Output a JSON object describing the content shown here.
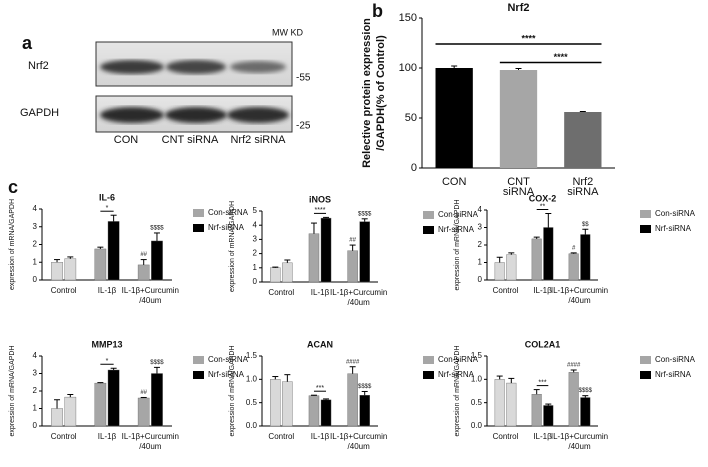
{
  "panels": {
    "a": {
      "label": "a",
      "proteins": [
        "Nrf2",
        "GAPDH"
      ],
      "mw_header": "MW KD",
      "mw": [
        "-55",
        "-25"
      ],
      "lanes": [
        "CON",
        "CNT siRNA",
        "Nrf2 siRNA"
      ]
    },
    "b_label": "b",
    "c_label": "c"
  },
  "chart_data": [
    {
      "type": "bar",
      "title": "Nrf2",
      "ylabel": [
        "Relective protein expression",
        "/GAPDH(% of Control)"
      ],
      "categories": [
        "CON",
        "CNT siRNA",
        "Nrf2 siRNA"
      ],
      "values": [
        100,
        98,
        56
      ],
      "errors": [
        2,
        1.5,
        0.5
      ],
      "colors": [
        "#000000",
        "#a6a6a6",
        "#6e6e6e"
      ],
      "ylim": [
        0,
        150
      ],
      "yticks": [
        0,
        50,
        100,
        150
      ],
      "annotations": [
        {
          "text": "****",
          "from": "CON",
          "to": "Nrf2 siRNA"
        },
        {
          "text": "****",
          "from": "CNT siRNA",
          "to": "Nrf2 siRNA"
        }
      ]
    },
    {
      "type": "bar",
      "title": "IL-6",
      "ylabel": "expression of mRNA/GAPDH",
      "categories": [
        "Control",
        "IL-1β",
        "IL-1β+Curcumin /40um"
      ],
      "series": [
        {
          "name": "Con-siRNA",
          "color": "#a6a6a6",
          "colors": [
            "#d9d9d9",
            "#a6a6a6",
            "#a6a6a6"
          ],
          "values": [
            1.0,
            1.75,
            0.85
          ],
          "errors": [
            0.15,
            0.1,
            0.3
          ]
        },
        {
          "name": "Nrf-siRNA",
          "color": "#000000",
          "colors": [
            "#d9d9d9",
            "#000000",
            "#000000"
          ],
          "values": [
            1.2,
            3.3,
            2.2
          ],
          "errors": [
            0.1,
            0.35,
            0.45
          ]
        }
      ],
      "ylim": [
        0,
        4
      ],
      "yticks": [
        0,
        1,
        2,
        3,
        4
      ],
      "annotations": [
        {
          "text": "*",
          "category": "IL-1β"
        },
        {
          "text": "##",
          "category": "IL-1β+Curcumin /40um",
          "series": "Con-siRNA"
        },
        {
          "text": "$$$$",
          "category": "IL-1β+Curcumin /40um",
          "series": "Nrf-siRNA"
        }
      ]
    },
    {
      "type": "bar",
      "title": "iNOS",
      "ylabel": "expression of mRNA/GAPDH",
      "categories": [
        "Control",
        "IL-1β",
        "IL-1β+Curcumin /40um"
      ],
      "series": [
        {
          "name": "Con-siRNA",
          "color": "#a6a6a6",
          "colors": [
            "#d9d9d9",
            "#a6a6a6",
            "#a6a6a6"
          ],
          "values": [
            1.0,
            3.4,
            2.2
          ],
          "errors": [
            0.05,
            0.75,
            0.4
          ]
        },
        {
          "name": "Nrf-siRNA",
          "color": "#000000",
          "colors": [
            "#d9d9d9",
            "#000000",
            "#000000"
          ],
          "values": [
            1.35,
            4.5,
            4.25
          ],
          "errors": [
            0.2,
            0.05,
            0.2
          ]
        }
      ],
      "ylim": [
        0,
        5
      ],
      "yticks": [
        0,
        1,
        2,
        3,
        4,
        5
      ],
      "annotations": [
        {
          "text": "****",
          "category": "IL-1β"
        },
        {
          "text": "##",
          "category": "IL-1β+Curcumin /40um",
          "series": "Con-siRNA"
        },
        {
          "text": "$$$$",
          "category": "IL-1β+Curcumin /40um",
          "series": "Nrf-siRNA"
        }
      ]
    },
    {
      "type": "bar",
      "title": "COX-2",
      "ylabel": "expression of mRNA/GAPDH",
      "categories": [
        "Control",
        "IL-1β",
        "IL-1β+Curcumin /40um"
      ],
      "series": [
        {
          "name": "Con-siRNA",
          "color": "#a6a6a6",
          "colors": [
            "#d9d9d9",
            "#a6a6a6",
            "#a6a6a6"
          ],
          "values": [
            1.0,
            2.35,
            1.5
          ],
          "errors": [
            0.3,
            0.1,
            0.05
          ]
        },
        {
          "name": "Nrf-siRNA",
          "color": "#000000",
          "colors": [
            "#d9d9d9",
            "#000000",
            "#000000"
          ],
          "values": [
            1.45,
            3.0,
            2.6
          ],
          "errors": [
            0.1,
            0.8,
            0.3
          ]
        }
      ],
      "ylim": [
        0,
        4
      ],
      "yticks": [
        0,
        1,
        2,
        3,
        4
      ],
      "annotations": [
        {
          "text": "**",
          "category": "IL-1β"
        },
        {
          "text": "#",
          "category": "IL-1β+Curcumin /40um",
          "series": "Con-siRNA"
        },
        {
          "text": "$$",
          "category": "IL-1β+Curcumin /40um",
          "series": "Nrf-siRNA"
        }
      ]
    },
    {
      "type": "bar",
      "title": "MMP13",
      "ylabel": "expression of mRNA/GAPDH",
      "categories": [
        "Control",
        "IL-1β",
        "IL-1β+Curcumin /40um"
      ],
      "series": [
        {
          "name": "Con-siRNA",
          "color": "#a6a6a6",
          "colors": [
            "#d9d9d9",
            "#a6a6a6",
            "#a6a6a6"
          ],
          "values": [
            1.0,
            2.45,
            1.6
          ],
          "errors": [
            0.5,
            0.03,
            0.03
          ]
        },
        {
          "name": "Nrf-siRNA",
          "color": "#000000",
          "colors": [
            "#d9d9d9",
            "#000000",
            "#000000"
          ],
          "values": [
            1.65,
            3.2,
            3.0
          ],
          "errors": [
            0.15,
            0.1,
            0.35
          ]
        }
      ],
      "ylim": [
        0,
        4
      ],
      "yticks": [
        0,
        1,
        2,
        3,
        4
      ],
      "annotations": [
        {
          "text": "*",
          "category": "IL-1β"
        },
        {
          "text": "##",
          "category": "IL-1β+Curcumin /40um",
          "series": "Con-siRNA"
        },
        {
          "text": "$$$$",
          "category": "IL-1β+Curcumin /40um",
          "series": "Nrf-siRNA"
        }
      ]
    },
    {
      "type": "bar",
      "title": "ACAN",
      "ylabel": "expression of mRNA/GAPDH",
      "categories": [
        "Control",
        "IL-1β",
        "IL-1β+Curcumin /40um"
      ],
      "series": [
        {
          "name": "Con-siRNA",
          "color": "#a6a6a6",
          "colors": [
            "#d9d9d9",
            "#a6a6a6",
            "#a6a6a6"
          ],
          "values": [
            1.0,
            0.65,
            1.12
          ],
          "errors": [
            0.06,
            0.01,
            0.15
          ]
        },
        {
          "name": "Nrf-siRNA",
          "color": "#000000",
          "colors": [
            "#d9d9d9",
            "#000000",
            "#000000"
          ],
          "values": [
            0.95,
            0.56,
            0.66
          ],
          "errors": [
            0.15,
            0.02,
            0.08
          ]
        }
      ],
      "ylim": [
        0,
        1.5
      ],
      "yticks": [
        {
          "value": 0,
          "label": "0.0"
        },
        0.5,
        {
          "value": 1,
          "label": "1.0"
        },
        1.5
      ],
      "annotations": [
        {
          "text": "***",
          "category": "IL-1β"
        },
        {
          "text": "####",
          "category": "IL-1β+Curcumin /40um",
          "series": "Con-siRNA"
        },
        {
          "text": "$$$$",
          "category": "IL-1β+Curcumin /40um",
          "series": "Nrf-siRNA"
        }
      ]
    },
    {
      "type": "bar",
      "title": "COL2A1",
      "ylabel": "expression of mRNA/GAPDH",
      "categories": [
        "Control",
        "IL-1β",
        "IL-1β+Curcumin /40um"
      ],
      "series": [
        {
          "name": "Con-siRNA",
          "color": "#a6a6a6",
          "colors": [
            "#d9d9d9",
            "#a6a6a6",
            "#a6a6a6"
          ],
          "values": [
            1.0,
            0.68,
            1.15
          ],
          "errors": [
            0.07,
            0.1,
            0.05
          ]
        },
        {
          "name": "Nrf-siRNA",
          "color": "#000000",
          "colors": [
            "#d9d9d9",
            "#000000",
            "#000000"
          ],
          "values": [
            0.92,
            0.44,
            0.61
          ],
          "errors": [
            0.1,
            0.03,
            0.04
          ]
        }
      ],
      "ylim": [
        0,
        1.5
      ],
      "yticks": [
        {
          "value": 0,
          "label": "0.0"
        },
        0.5,
        {
          "value": 1,
          "label": "1.0"
        },
        1.5
      ],
      "annotations": [
        {
          "text": "***",
          "category": "IL-1β"
        },
        {
          "text": "####",
          "category": "IL-1β+Curcumin /40um",
          "series": "Con-siRNA"
        },
        {
          "text": "$$$$",
          "category": "IL-1β+Curcumin /40um",
          "series": "Nrf-siRNA"
        }
      ]
    }
  ]
}
